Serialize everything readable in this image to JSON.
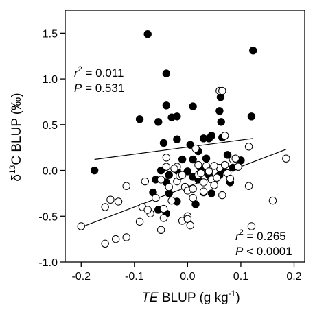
{
  "chart_data": {
    "type": "scatter",
    "title": "",
    "xlabel": {
      "italic": "TE",
      "rest": " BLUP (g kg",
      "sup": "-1",
      "close": ")"
    },
    "ylabel": {
      "delta": "δ",
      "sup": "13",
      "rest": "C BLUP (‰)"
    },
    "xlim": [
      -0.23,
      0.22
    ],
    "ylim": [
      -1.0,
      1.75
    ],
    "xticks": [
      -0.2,
      -0.1,
      0.0,
      0.1,
      0.2
    ],
    "xtick_labels": [
      "-0.2",
      "-0.1",
      "0.0",
      "0.1",
      "0.2"
    ],
    "yticks": [
      -1.0,
      -0.5,
      0.0,
      0.5,
      1.0,
      1.5
    ],
    "ytick_labels": [
      "-1.0",
      "-0.5",
      "0.0",
      "0.5",
      "1.0",
      "1.5"
    ],
    "grid": false,
    "series": [
      {
        "marker": "filled",
        "color": "#000000",
        "points": [
          [
            -0.075,
            1.49
          ],
          [
            0.123,
            1.31
          ],
          [
            -0.04,
            1.06
          ],
          [
            0.12,
            0.59
          ],
          [
            -0.04,
            0.71
          ],
          [
            -0.09,
            0.56
          ],
          [
            -0.03,
            0.58
          ],
          [
            -0.02,
            0.59
          ],
          [
            0.01,
            0.7
          ],
          [
            -0.02,
            0.34
          ],
          [
            0.06,
            0.65
          ],
          [
            0.062,
            0.8
          ],
          [
            -0.055,
            0.53
          ],
          [
            0.063,
            0.53
          ],
          [
            0.04,
            0.35
          ],
          [
            0.03,
            0.35
          ],
          [
            0.045,
            0.38
          ],
          [
            0.065,
            0.36
          ],
          [
            -0.045,
            0.3
          ],
          [
            0.005,
            0.28
          ],
          [
            0.02,
            0.21
          ],
          [
            0.035,
            0.13
          ],
          [
            0.075,
            0.17
          ],
          [
            0.085,
            0.03
          ],
          [
            0.1,
            0.11
          ],
          [
            -0.175,
            0.0
          ],
          [
            -0.05,
            0.0
          ],
          [
            -0.02,
            0.0
          ],
          [
            0.0,
            -0.01
          ],
          [
            0.025,
            0.02
          ],
          [
            -0.035,
            -0.05
          ],
          [
            0.06,
            -0.05
          ],
          [
            0.065,
            0.01
          ],
          [
            -0.06,
            -0.1
          ],
          [
            -0.04,
            -0.13
          ],
          [
            0.01,
            -0.07
          ],
          [
            0.04,
            -0.05
          ],
          [
            0.08,
            -0.13
          ],
          [
            -0.065,
            -0.24
          ],
          [
            -0.035,
            -0.25
          ],
          [
            0.045,
            -0.25
          ],
          [
            -0.055,
            -0.43
          ],
          [
            -0.04,
            -0.47
          ],
          [
            -0.02,
            -0.34
          ],
          [
            0.015,
            -0.37
          ],
          [
            0.03,
            -0.24
          ],
          [
            0.02,
            -0.1
          ],
          [
            -0.01,
            0.12
          ],
          [
            0.01,
            0.12
          ]
        ]
      },
      {
        "marker": "open",
        "color": "#000000",
        "points": [
          [
            -0.2,
            -0.61
          ],
          [
            -0.155,
            -0.8
          ],
          [
            -0.135,
            -0.75
          ],
          [
            -0.115,
            -0.73
          ],
          [
            -0.155,
            -0.4
          ],
          [
            -0.145,
            -0.32
          ],
          [
            -0.13,
            -0.34
          ],
          [
            -0.115,
            -0.17
          ],
          [
            -0.09,
            -0.56
          ],
          [
            -0.085,
            -0.4
          ],
          [
            -0.08,
            -0.12
          ],
          [
            -0.07,
            -0.47
          ],
          [
            -0.075,
            -0.43
          ],
          [
            -0.06,
            -0.3
          ],
          [
            -0.05,
            -0.65
          ],
          [
            -0.045,
            -0.52
          ],
          [
            -0.03,
            -0.33
          ],
          [
            -0.045,
            -0.42
          ],
          [
            -0.04,
            0.14
          ],
          [
            -0.05,
            -0.1
          ],
          [
            -0.035,
            -0.18
          ],
          [
            -0.04,
            0.04
          ],
          [
            -0.02,
            0.04
          ],
          [
            -0.02,
            -0.12
          ],
          [
            -0.015,
            -0.06
          ],
          [
            -0.01,
            -0.05
          ],
          [
            -0.005,
            -0.18
          ],
          [
            0.0,
            -0.22
          ],
          [
            -0.01,
            -0.55
          ],
          [
            0.0,
            -0.5
          ],
          [
            0.0,
            -0.53
          ],
          [
            0.005,
            -0.6
          ],
          [
            0.01,
            -0.3
          ],
          [
            0.01,
            -0.2
          ],
          [
            0.02,
            -0.05
          ],
          [
            0.02,
            0.06
          ],
          [
            0.025,
            -0.03
          ],
          [
            0.03,
            -0.13
          ],
          [
            0.03,
            -0.23
          ],
          [
            0.035,
            0.05
          ],
          [
            0.04,
            -0.01
          ],
          [
            0.045,
            -0.1
          ],
          [
            0.05,
            -0.16
          ],
          [
            0.055,
            -0.08
          ],
          [
            0.06,
            0.03
          ],
          [
            0.065,
            -0.27
          ],
          [
            0.07,
            0.06
          ],
          [
            0.075,
            -0.03
          ],
          [
            0.08,
            -0.09
          ],
          [
            0.085,
            0.12
          ],
          [
            0.09,
            0.13
          ],
          [
            0.095,
            0.04
          ],
          [
            0.115,
            0.26
          ],
          [
            0.115,
            -0.17
          ],
          [
            0.12,
            -0.61
          ],
          [
            0.16,
            -0.33
          ],
          [
            0.185,
            0.13
          ],
          [
            0.06,
            0.87
          ],
          [
            0.065,
            0.87
          ],
          [
            0.07,
            0.38
          ],
          [
            0.015,
            0.24
          ],
          [
            0.05,
            0.05
          ],
          [
            -0.025,
            0.02
          ]
        ]
      }
    ],
    "lines": [
      {
        "x": [
          -0.175,
          0.123
        ],
        "y": [
          0.12,
          0.35
        ]
      },
      {
        "x": [
          -0.2,
          0.185
        ],
        "y": [
          -0.62,
          0.23
        ]
      }
    ],
    "annotations": [
      {
        "lines": [
          {
            "italic": "r",
            "sup": "2",
            "rest": " = 0.011"
          },
          {
            "italic": "P",
            "rest": " = 0.531"
          }
        ]
      },
      {
        "lines": [
          {
            "italic": "r",
            "sup": "2",
            "rest": " = 0.265"
          },
          {
            "italic": "P",
            "rest": " < 0.0001"
          }
        ]
      }
    ]
  }
}
